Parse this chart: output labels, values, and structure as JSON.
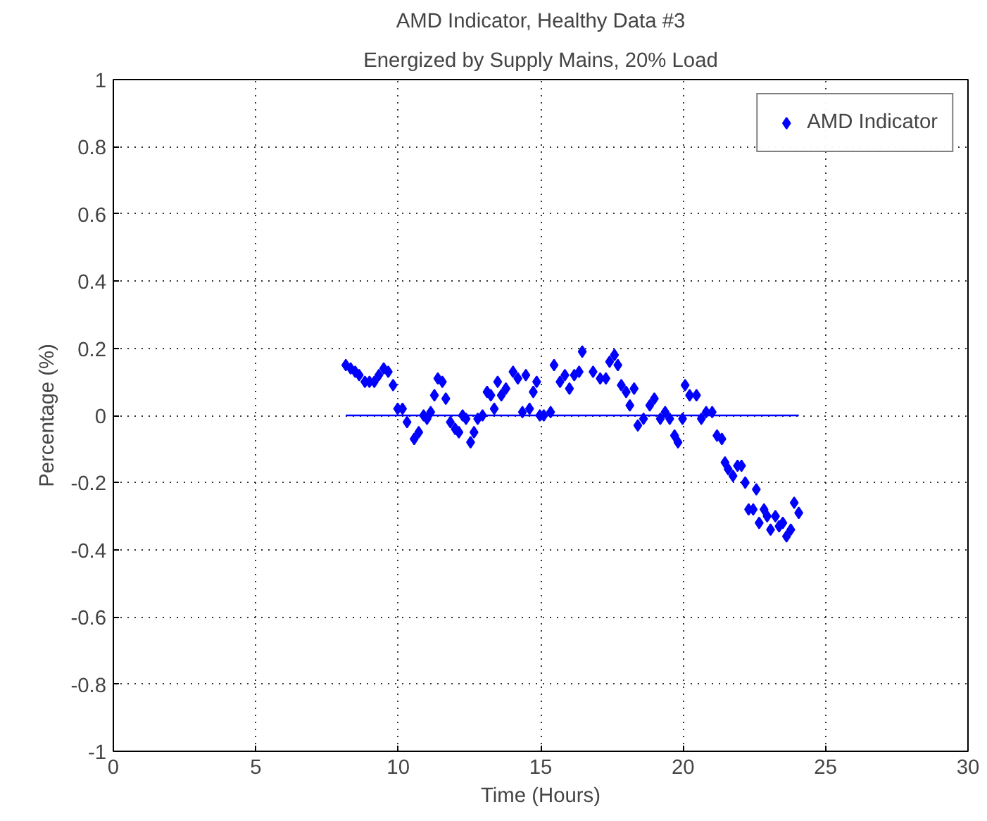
{
  "chart_data": {
    "type": "scatter",
    "title": "AMD Indicator, Healthy Data #3",
    "subtitle": "Energized by Supply Mains, 20% Load",
    "xlabel": "Time (Hours)",
    "ylabel": "Percentage (%)",
    "xlim": [
      0,
      30
    ],
    "xticks": [
      0,
      5,
      10,
      15,
      20,
      25,
      30
    ],
    "ylim": [
      -1,
      1
    ],
    "yticks": [
      -1,
      -0.8,
      -0.6,
      -0.4,
      -0.2,
      0,
      0.2,
      0.4,
      0.6,
      0.8,
      1
    ],
    "grid": true,
    "legend": "top right",
    "series": [
      {
        "name": "AMD Indicator",
        "color": "#0000ff",
        "marker": "diamond",
        "x": [
          8.16,
          8.33,
          8.49,
          8.63,
          8.83,
          8.99,
          9.16,
          9.32,
          9.49,
          9.65,
          9.82,
          9.98,
          10.15,
          10.31,
          10.56,
          10.72,
          10.89,
          11.01,
          11.14,
          11.27,
          11.39,
          11.55,
          11.67,
          11.83,
          12.0,
          12.13,
          12.26,
          12.38,
          12.54,
          12.66,
          12.79,
          12.96,
          13.12,
          13.25,
          13.37,
          13.49,
          13.62,
          13.78,
          14.03,
          14.2,
          14.36,
          14.48,
          14.61,
          14.74,
          14.86,
          14.97,
          15.11,
          15.35,
          15.47,
          15.68,
          15.85,
          16.01,
          16.18,
          16.35,
          16.46,
          16.84,
          17.09,
          17.29,
          17.42,
          17.59,
          17.71,
          17.83,
          18.0,
          18.13,
          18.28,
          18.41,
          18.61,
          18.83,
          18.99,
          19.2,
          19.37,
          19.53,
          19.7,
          19.82,
          19.98,
          20.07,
          20.23,
          20.47,
          20.64,
          20.81,
          21.02,
          21.19,
          21.36,
          21.47,
          21.58,
          21.75,
          21.91,
          22.05,
          22.18,
          22.3,
          22.46,
          22.57,
          22.67,
          22.84,
          22.95,
          23.07,
          23.24,
          23.37,
          23.5,
          23.63,
          23.78,
          23.9,
          24.06
        ],
        "values": [
          0.15,
          0.14,
          0.13,
          0.12,
          0.1,
          0.1,
          0.1,
          0.12,
          0.14,
          0.13,
          0.09,
          0.02,
          0.02,
          -0.02,
          -0.07,
          -0.05,
          0.0,
          -0.01,
          0.01,
          0.06,
          0.11,
          0.1,
          0.05,
          -0.02,
          -0.04,
          -0.05,
          0.0,
          -0.01,
          -0.08,
          -0.05,
          -0.01,
          0.0,
          0.07,
          0.06,
          0.02,
          0.1,
          0.06,
          0.08,
          0.13,
          0.11,
          0.01,
          0.12,
          0.02,
          0.07,
          0.1,
          0.0,
          0.0,
          0.01,
          0.15,
          0.1,
          0.12,
          0.08,
          0.12,
          0.13,
          0.19,
          0.13,
          0.11,
          0.11,
          0.16,
          0.18,
          0.15,
          0.09,
          0.07,
          0.03,
          0.08,
          -0.03,
          -0.01,
          0.03,
          0.05,
          -0.01,
          0.01,
          -0.01,
          -0.06,
          -0.08,
          -0.01,
          0.09,
          0.06,
          0.06,
          -0.01,
          0.01,
          0.01,
          -0.06,
          -0.07,
          -0.14,
          -0.16,
          -0.18,
          -0.15,
          -0.15,
          -0.2,
          -0.28,
          -0.28,
          -0.22,
          -0.32,
          -0.28,
          -0.3,
          -0.34,
          -0.3,
          -0.33,
          -0.32,
          -0.36,
          -0.34,
          -0.26,
          -0.29
        ]
      },
      {
        "color": "#0000ff",
        "type": "line",
        "x": [
          8.16,
          24.06
        ],
        "values": [
          0,
          0
        ]
      }
    ]
  }
}
